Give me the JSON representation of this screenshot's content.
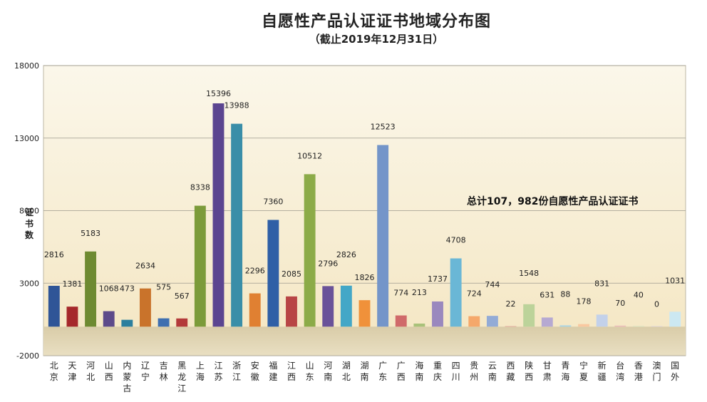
{
  "chart_data": {
    "type": "bar",
    "title": "自愿性产品认证证书地域分布图",
    "subtitle": "（截止2019年12月31日）",
    "ylabel": "证书数",
    "annotation": "总计107，982份自愿性产品认证证书",
    "ylim": [
      -2000,
      18000
    ],
    "yticks": [
      -2000,
      3000,
      8000,
      13000,
      18000
    ],
    "grid": true,
    "categories": [
      "北京",
      "天津",
      "河北",
      "山西",
      "内蒙古",
      "辽宁",
      "吉林",
      "黑龙江",
      "上海",
      "江苏",
      "浙江",
      "安徽",
      "福建",
      "江西",
      "山东",
      "河南",
      "湖北",
      "湖南",
      "广东",
      "广西",
      "海南",
      "重庆",
      "四川",
      "贵州",
      "云南",
      "西藏",
      "陕西",
      "甘肃",
      "青海",
      "宁夏",
      "新疆",
      "台湾",
      "香港",
      "澳门",
      "国外"
    ],
    "values": [
      2816,
      1381,
      5183,
      1068,
      473,
      2634,
      575,
      567,
      8338,
      15396,
      13988,
      2296,
      7360,
      2085,
      10512,
      2796,
      2826,
      1826,
      12523,
      774,
      213,
      1737,
      4708,
      724,
      744,
      22,
      1548,
      631,
      88,
      178,
      831,
      70,
      40,
      0,
      1031
    ],
    "colors": [
      "#2f5597",
      "#a5282b",
      "#6e8a31",
      "#5d4a8a",
      "#2c7f9e",
      "#c9732b",
      "#3f6fb0",
      "#b33a3a",
      "#7c9b3a",
      "#5b4590",
      "#3a8ea8",
      "#e08032",
      "#2f5fa6",
      "#b84545",
      "#8cab48",
      "#6a5299",
      "#43a7c7",
      "#f0913a",
      "#7495c9",
      "#d06a6a",
      "#a9c27a",
      "#9a88be",
      "#6ab7d6",
      "#f5a86b",
      "#93abd6",
      "#dd8c8c",
      "#bcd39a",
      "#b6a9d2",
      "#a6d4e6",
      "#f9c8a0",
      "#c3d1ea",
      "#ebb9b9",
      "#d6e4c2",
      "#d9d0e6",
      "#cce8f2"
    ],
    "label_offsets": [
      0,
      0,
      0,
      0,
      0,
      0,
      0,
      0,
      0,
      0,
      0,
      0,
      0,
      0,
      0,
      0,
      0,
      0,
      0,
      0,
      0,
      0,
      0,
      0,
      0,
      0,
      0,
      0,
      0,
      0,
      0,
      0,
      0,
      0,
      0
    ]
  }
}
